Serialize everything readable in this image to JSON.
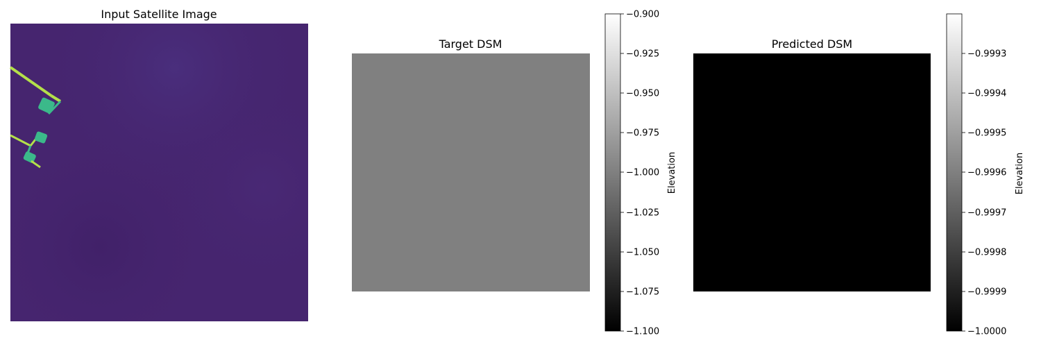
{
  "panels": [
    {
      "title": "Input Satellite Image",
      "colormap": "viridis",
      "base_color": "#46256f",
      "feature_color": "#3bb98a",
      "feature_highlight": "#b4e04a"
    },
    {
      "title": "Target DSM",
      "colormap": "gray",
      "fill_color": "#808080",
      "colorbar": {
        "label": "Elevation",
        "range": [
          -1.1,
          -0.9
        ],
        "ticks": [
          "−0.900",
          "−0.925",
          "−0.950",
          "−0.975",
          "−1.000",
          "−1.025",
          "−1.050",
          "−1.075",
          "−1.100"
        ]
      }
    },
    {
      "title": "Predicted DSM",
      "colormap": "gray",
      "fill_color": "#000000",
      "colorbar": {
        "label": "Elevation",
        "range": [
          -1.0,
          -0.99925
        ],
        "ticks": [
          "−0.9993",
          "−0.9994",
          "−0.9995",
          "−0.9996",
          "−0.9997",
          "−0.9998",
          "−0.9999",
          "−1.0000"
        ]
      }
    }
  ]
}
